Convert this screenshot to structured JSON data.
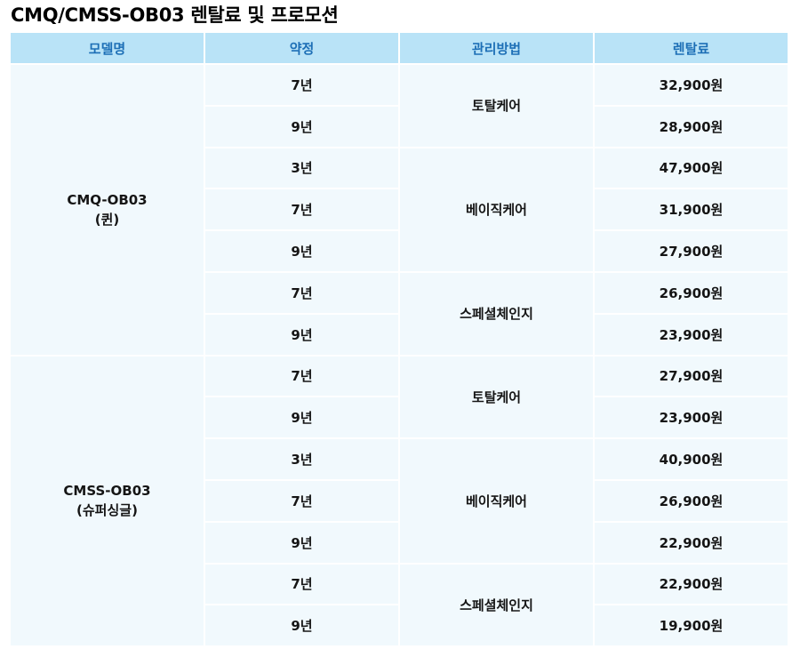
{
  "title": "CMQ/CMSS-OB03 렌탈료 및 프로모션",
  "headers": [
    "모델명",
    "약정",
    "관리방법",
    "렌탈료"
  ],
  "models": [
    {
      "name": "CMQ-OB03",
      "sub": "(퀸)",
      "groups": [
        {
          "method": "토탈케어",
          "rows": [
            {
              "term": "7년",
              "price": "32,900원"
            },
            {
              "term": "9년",
              "price": "28,900원"
            }
          ]
        },
        {
          "method": "베이직케어",
          "rows": [
            {
              "term": "3년",
              "price": "47,900원"
            },
            {
              "term": "7년",
              "price": "31,900원"
            },
            {
              "term": "9년",
              "price": "27,900원"
            }
          ]
        },
        {
          "method": "스페셜체인지",
          "rows": [
            {
              "term": "7년",
              "price": "26,900원"
            },
            {
              "term": "9년",
              "price": "23,900원"
            }
          ]
        }
      ]
    },
    {
      "name": "CMSS-OB03",
      "sub": "(슈퍼싱글)",
      "groups": [
        {
          "method": "토탈케어",
          "rows": [
            {
              "term": "7년",
              "price": "27,900원"
            },
            {
              "term": "9년",
              "price": "23,900원"
            }
          ]
        },
        {
          "method": "베이직케어",
          "rows": [
            {
              "term": "3년",
              "price": "40,900원"
            },
            {
              "term": "7년",
              "price": "26,900원"
            },
            {
              "term": "9년",
              "price": "22,900원"
            }
          ]
        },
        {
          "method": "스페셜체인지",
          "rows": [
            {
              "term": "7년",
              "price": "22,900원"
            },
            {
              "term": "9년",
              "price": "19,900원"
            }
          ]
        }
      ]
    }
  ]
}
